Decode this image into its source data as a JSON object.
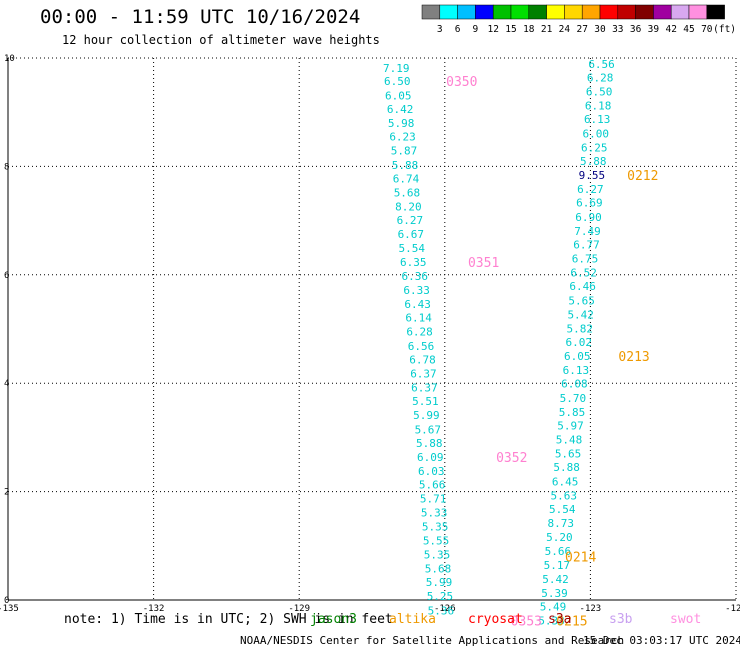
{
  "title": "00:00 - 11:59 UTC 10/16/2024",
  "subtitle": "12 hour collection of altimeter wave heights",
  "colorbar": {
    "colors": [
      "#808080",
      "#00ffff",
      "#00bfff",
      "#0000ff",
      "#00c000",
      "#00e000",
      "#008000",
      "#ffff00",
      "#ffd700",
      "#ffa500",
      "#ff0000",
      "#c00000",
      "#800000",
      "#a000a0",
      "#d8a8f0",
      "#ff90e0",
      "#000000"
    ],
    "labels": [
      "3",
      "6",
      "9",
      "12",
      "15",
      "18",
      "21",
      "24",
      "27",
      "30",
      "33",
      "36",
      "39",
      "42",
      "45",
      "70",
      "(ft)"
    ]
  },
  "chart_data": {
    "type": "scatter",
    "xlim": [
      -135,
      -120
    ],
    "ylim": [
      0,
      10
    ],
    "xticks": [
      "-135",
      "-132",
      "-129",
      "-126",
      "-123",
      "-120"
    ],
    "yticks": [
      "0",
      "2",
      "4",
      "6",
      "8",
      "10"
    ],
    "grid": true,
    "series": [
      {
        "name": "swot",
        "color": "#00cccc",
        "points": [
          {
            "x": -127.0,
            "y": 9.82,
            "v": "7.19"
          },
          {
            "x": -126.98,
            "y": 9.58,
            "v": "6.50"
          },
          {
            "x": -126.96,
            "y": 9.31,
            "v": "6.05"
          },
          {
            "x": -126.92,
            "y": 9.06,
            "v": "6.42"
          },
          {
            "x": -126.9,
            "y": 8.8,
            "v": "5.98"
          },
          {
            "x": -126.87,
            "y": 8.55,
            "v": "6.23"
          },
          {
            "x": -126.84,
            "y": 8.29,
            "v": "5.87"
          },
          {
            "x": -126.82,
            "y": 8.03,
            "v": "5.88"
          },
          {
            "x": -126.8,
            "y": 7.78,
            "v": "6.74"
          },
          {
            "x": -126.78,
            "y": 7.52,
            "v": "5.68"
          },
          {
            "x": -126.75,
            "y": 7.26,
            "v": "8.20"
          },
          {
            "x": -126.72,
            "y": 7.01,
            "v": "6.27"
          },
          {
            "x": -126.7,
            "y": 6.75,
            "v": "6.67"
          },
          {
            "x": -126.68,
            "y": 6.49,
            "v": "5.54"
          },
          {
            "x": -126.65,
            "y": 6.24,
            "v": "6.35"
          },
          {
            "x": -126.62,
            "y": 5.98,
            "v": "6.36"
          },
          {
            "x": -126.58,
            "y": 5.72,
            "v": "6.33"
          },
          {
            "x": -126.56,
            "y": 5.46,
            "v": "6.43"
          },
          {
            "x": -126.54,
            "y": 5.21,
            "v": "6.14"
          },
          {
            "x": -126.52,
            "y": 4.95,
            "v": "6.28"
          },
          {
            "x": -126.49,
            "y": 4.69,
            "v": "6.56"
          },
          {
            "x": -126.46,
            "y": 4.44,
            "v": "6.78"
          },
          {
            "x": -126.44,
            "y": 4.18,
            "v": "6.37"
          },
          {
            "x": -126.42,
            "y": 3.92,
            "v": "6.37"
          },
          {
            "x": -126.4,
            "y": 3.67,
            "v": "5.51"
          },
          {
            "x": -126.38,
            "y": 3.41,
            "v": "5.99"
          },
          {
            "x": -126.35,
            "y": 3.15,
            "v": "5.67"
          },
          {
            "x": -126.32,
            "y": 2.9,
            "v": "5.88"
          },
          {
            "x": -126.3,
            "y": 2.64,
            "v": "6.09"
          },
          {
            "x": -126.28,
            "y": 2.38,
            "v": "6.03"
          },
          {
            "x": -126.26,
            "y": 2.13,
            "v": "5.66"
          },
          {
            "x": -126.24,
            "y": 1.87,
            "v": "5.71"
          },
          {
            "x": -126.22,
            "y": 1.61,
            "v": "5.33"
          },
          {
            "x": -126.2,
            "y": 1.36,
            "v": "5.35"
          },
          {
            "x": -126.18,
            "y": 1.1,
            "v": "5.55"
          },
          {
            "x": -126.16,
            "y": 0.84,
            "v": "5.35"
          },
          {
            "x": -126.14,
            "y": 0.58,
            "v": "5.68"
          },
          {
            "x": -126.12,
            "y": 0.33,
            "v": "5.99"
          },
          {
            "x": -126.1,
            "y": 0.07,
            "v": "5.25"
          },
          {
            "x": -126.08,
            "y": -0.19,
            "v": "5.36"
          },
          {
            "x": -122.77,
            "y": 9.89,
            "v": "6.56"
          },
          {
            "x": -122.8,
            "y": 9.64,
            "v": "6.28"
          },
          {
            "x": -122.82,
            "y": 9.38,
            "v": "6.50"
          },
          {
            "x": -122.84,
            "y": 9.12,
            "v": "6.18"
          },
          {
            "x": -122.86,
            "y": 8.87,
            "v": "6.13"
          },
          {
            "x": -122.89,
            "y": 8.61,
            "v": "6.00"
          },
          {
            "x": -122.92,
            "y": 8.35,
            "v": "6.25"
          },
          {
            "x": -122.94,
            "y": 8.1,
            "v": "5.88"
          },
          {
            "x": -123.0,
            "y": 7.58,
            "v": "6.27"
          },
          {
            "x": -123.02,
            "y": 7.33,
            "v": "6.69"
          },
          {
            "x": -123.04,
            "y": 7.07,
            "v": "6.90"
          },
          {
            "x": -123.06,
            "y": 6.81,
            "v": "7.49"
          },
          {
            "x": -123.08,
            "y": 6.56,
            "v": "6.77"
          },
          {
            "x": -123.11,
            "y": 6.3,
            "v": "6.75"
          },
          {
            "x": -123.14,
            "y": 6.04,
            "v": "6.52"
          },
          {
            "x": -123.16,
            "y": 5.79,
            "v": "6.46"
          },
          {
            "x": -123.18,
            "y": 5.53,
            "v": "5.65"
          },
          {
            "x": -123.2,
            "y": 5.27,
            "v": "5.42"
          },
          {
            "x": -123.22,
            "y": 5.01,
            "v": "5.82"
          },
          {
            "x": -123.24,
            "y": 4.76,
            "v": "6.02"
          },
          {
            "x": -123.27,
            "y": 4.5,
            "v": "6.05"
          },
          {
            "x": -123.3,
            "y": 4.24,
            "v": "6.13"
          },
          {
            "x": -123.33,
            "y": 3.99,
            "v": "6.08"
          },
          {
            "x": -123.36,
            "y": 3.73,
            "v": "5.70"
          },
          {
            "x": -123.38,
            "y": 3.47,
            "v": "5.85"
          },
          {
            "x": -123.41,
            "y": 3.22,
            "v": "5.97"
          },
          {
            "x": -123.44,
            "y": 2.96,
            "v": "5.48"
          },
          {
            "x": -123.46,
            "y": 2.7,
            "v": "5.65"
          },
          {
            "x": -123.49,
            "y": 2.45,
            "v": "5.88"
          },
          {
            "x": -123.52,
            "y": 2.19,
            "v": "6.45"
          },
          {
            "x": -123.55,
            "y": 1.93,
            "v": "5.63"
          },
          {
            "x": -123.58,
            "y": 1.68,
            "v": "5.54"
          },
          {
            "x": -123.61,
            "y": 1.42,
            "v": "8.73"
          },
          {
            "x": -123.64,
            "y": 1.16,
            "v": "5.20"
          },
          {
            "x": -123.67,
            "y": 0.9,
            "v": "5.66"
          },
          {
            "x": -123.69,
            "y": 0.65,
            "v": "5.17"
          },
          {
            "x": -123.72,
            "y": 0.39,
            "v": "5.42"
          },
          {
            "x": -123.74,
            "y": 0.13,
            "v": "5.39"
          },
          {
            "x": -123.77,
            "y": -0.12,
            "v": "5.49"
          },
          {
            "x": -123.8,
            "y": -0.38,
            "v": "5.33"
          }
        ]
      },
      {
        "name": "extra",
        "color": "#000080",
        "points": [
          {
            "x": -122.97,
            "y": 7.84,
            "v": "9.55"
          }
        ]
      }
    ],
    "time_labels": [
      {
        "text": "0350",
        "x": -125.65,
        "y": 9.58,
        "color": "#ff80d0"
      },
      {
        "text": "0351",
        "x": -125.2,
        "y": 6.24,
        "color": "#ff80d0"
      },
      {
        "text": "0352",
        "x": -124.62,
        "y": 2.64,
        "color": "#ff80d0"
      },
      {
        "text": "0353",
        "x": -124.32,
        "y": -0.38,
        "color": "#ff80d0"
      },
      {
        "text": "0212",
        "x": -121.92,
        "y": 7.84,
        "color": "#ee9900"
      },
      {
        "text": "0213",
        "x": -122.1,
        "y": 4.5,
        "color": "#ee9900"
      },
      {
        "text": "0214",
        "x": -123.2,
        "y": 0.8,
        "color": "#ee9900"
      },
      {
        "text": "0215",
        "x": -123.38,
        "y": -0.38,
        "color": "#ee9900"
      }
    ]
  },
  "footer": {
    "note": "note: 1) Time is in UTC; 2) SWH is in feet",
    "satellites": [
      {
        "name": "jason3",
        "color": "#008000"
      },
      {
        "name": "altika",
        "color": "#ee9900"
      },
      {
        "name": "cryosat",
        "color": "#ff0000"
      },
      {
        "name": "s3a",
        "color": "#a00000"
      },
      {
        "name": "s3b",
        "color": "#c8a0f0"
      },
      {
        "name": "swot",
        "color": "#ff90e0"
      }
    ],
    "credit": "NOAA/NESDIS Center for Satellite Applications and Research",
    "timestamp": "15 Dec 03:03:17 UTC 2024"
  }
}
